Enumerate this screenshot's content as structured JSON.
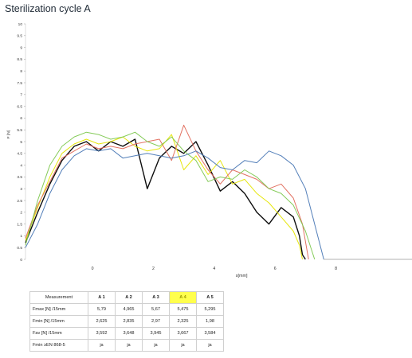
{
  "title": "Sterilization cycle A",
  "chart_data": {
    "type": "line",
    "title": "Sterilization cycle A",
    "xlabel": "s[mm]",
    "ylabel": "F [N]",
    "xlim": [
      -2.2,
      10.5
    ],
    "ylim": [
      0,
      10
    ],
    "yticks": [
      "0",
      "0.5",
      "1",
      "1.5",
      "2",
      "2.5",
      "3",
      "3.5",
      "4",
      "4.5",
      "5",
      "5.5",
      "6",
      "6.5",
      "7",
      "7.5",
      "8",
      "8.5",
      "9",
      "9.5",
      "10"
    ],
    "xticks": [
      "0",
      "2",
      "4",
      "6",
      "8"
    ],
    "grid": false,
    "series": [
      {
        "color": "#000000",
        "x": [
          -2.2,
          -1.8,
          -1.4,
          -1.0,
          -0.6,
          -0.2,
          0.2,
          0.6,
          1.0,
          1.4,
          1.8,
          2.2,
          2.6,
          3.0,
          3.4,
          3.8,
          4.2,
          4.6,
          5.0,
          5.4,
          5.8,
          6.2,
          6.6,
          6.8,
          6.9,
          7.0
        ],
        "y": [
          0.7,
          2.0,
          3.2,
          4.2,
          4.8,
          5.0,
          4.6,
          5.0,
          4.8,
          5.1,
          3.0,
          4.3,
          4.8,
          4.5,
          5.0,
          4.0,
          2.9,
          3.3,
          2.8,
          2.0,
          1.5,
          2.2,
          1.8,
          1.0,
          0.2,
          0.0
        ]
      },
      {
        "color": "#e5e500",
        "x": [
          -2.2,
          -1.8,
          -1.4,
          -1.0,
          -0.6,
          -0.2,
          0.2,
          0.6,
          1.0,
          1.4,
          1.8,
          2.2,
          2.6,
          3.0,
          3.4,
          3.8,
          4.2,
          4.6,
          5.0,
          5.4,
          5.8,
          6.2,
          6.6,
          6.8,
          6.9
        ],
        "y": [
          0.8,
          2.2,
          3.5,
          4.5,
          4.9,
          5.1,
          4.9,
          5.0,
          5.2,
          4.8,
          4.6,
          4.7,
          5.3,
          3.8,
          4.4,
          3.6,
          4.2,
          3.2,
          3.4,
          2.8,
          2.4,
          1.8,
          1.2,
          0.6,
          0.0
        ]
      },
      {
        "color": "#e06a5a",
        "x": [
          -2.2,
          -1.8,
          -1.4,
          -1.0,
          -0.6,
          -0.2,
          0.2,
          0.6,
          1.0,
          1.4,
          1.8,
          2.2,
          2.6,
          3.0,
          3.4,
          3.8,
          4.2,
          4.6,
          5.0,
          5.4,
          5.8,
          6.2,
          6.6,
          6.9,
          7.1
        ],
        "y": [
          0.9,
          2.3,
          3.3,
          4.3,
          4.6,
          4.9,
          4.7,
          4.8,
          4.7,
          4.9,
          5.0,
          5.1,
          4.2,
          5.7,
          4.6,
          3.8,
          3.2,
          3.8,
          3.6,
          3.4,
          3.0,
          3.2,
          2.6,
          1.5,
          0.0
        ]
      },
      {
        "color": "#7ec850",
        "x": [
          -2.2,
          -1.8,
          -1.4,
          -1.0,
          -0.6,
          -0.2,
          0.2,
          0.6,
          1.0,
          1.4,
          1.8,
          2.2,
          2.6,
          3.0,
          3.4,
          3.8,
          4.2,
          4.6,
          5.0,
          5.4,
          5.8,
          6.2,
          6.6,
          7.0,
          7.3
        ],
        "y": [
          0.6,
          2.5,
          4.0,
          4.8,
          5.2,
          5.4,
          5.3,
          5.1,
          5.2,
          5.4,
          5.0,
          4.8,
          5.2,
          4.6,
          4.2,
          3.3,
          3.5,
          3.4,
          3.8,
          3.5,
          3.0,
          2.8,
          2.3,
          1.2,
          0.0
        ]
      },
      {
        "color": "#4a78b5",
        "x": [
          -2.2,
          -1.8,
          -1.4,
          -1.0,
          -0.6,
          -0.2,
          0.2,
          0.6,
          1.0,
          1.4,
          1.8,
          2.2,
          2.6,
          3.0,
          3.4,
          3.8,
          4.2,
          4.6,
          5.0,
          5.4,
          5.8,
          6.2,
          6.6,
          7.0,
          7.3,
          7.6
        ],
        "y": [
          0.5,
          1.5,
          2.8,
          3.8,
          4.4,
          4.7,
          4.6,
          4.7,
          4.3,
          4.4,
          4.5,
          4.4,
          4.3,
          4.4,
          4.6,
          4.3,
          3.9,
          3.8,
          4.2,
          4.1,
          4.6,
          4.4,
          4.0,
          3.0,
          1.5,
          0.0
        ]
      }
    ]
  },
  "table": {
    "headers": [
      "Measurement",
      "A 1",
      "A 2",
      "A 3",
      "A 4",
      "A 5"
    ],
    "rows": [
      {
        "label": "Fmax [N] /15mm",
        "values": [
          "5,79",
          "4,965",
          "5,67",
          "5,475",
          "5,295"
        ]
      },
      {
        "label": "Fmin [N] /15mm",
        "values": [
          "2,625",
          "2,835",
          "2,97",
          "2,325",
          "1,98"
        ]
      },
      {
        "label": "Fav [N] /15mm",
        "values": [
          "3,592",
          "3,648",
          "3,945",
          "3,667",
          "3,584"
        ]
      },
      {
        "label": "Fmin ≥EN 868-5",
        "values": [
          "ja",
          "ja",
          "ja",
          "ja",
          "ja"
        ]
      }
    ]
  }
}
